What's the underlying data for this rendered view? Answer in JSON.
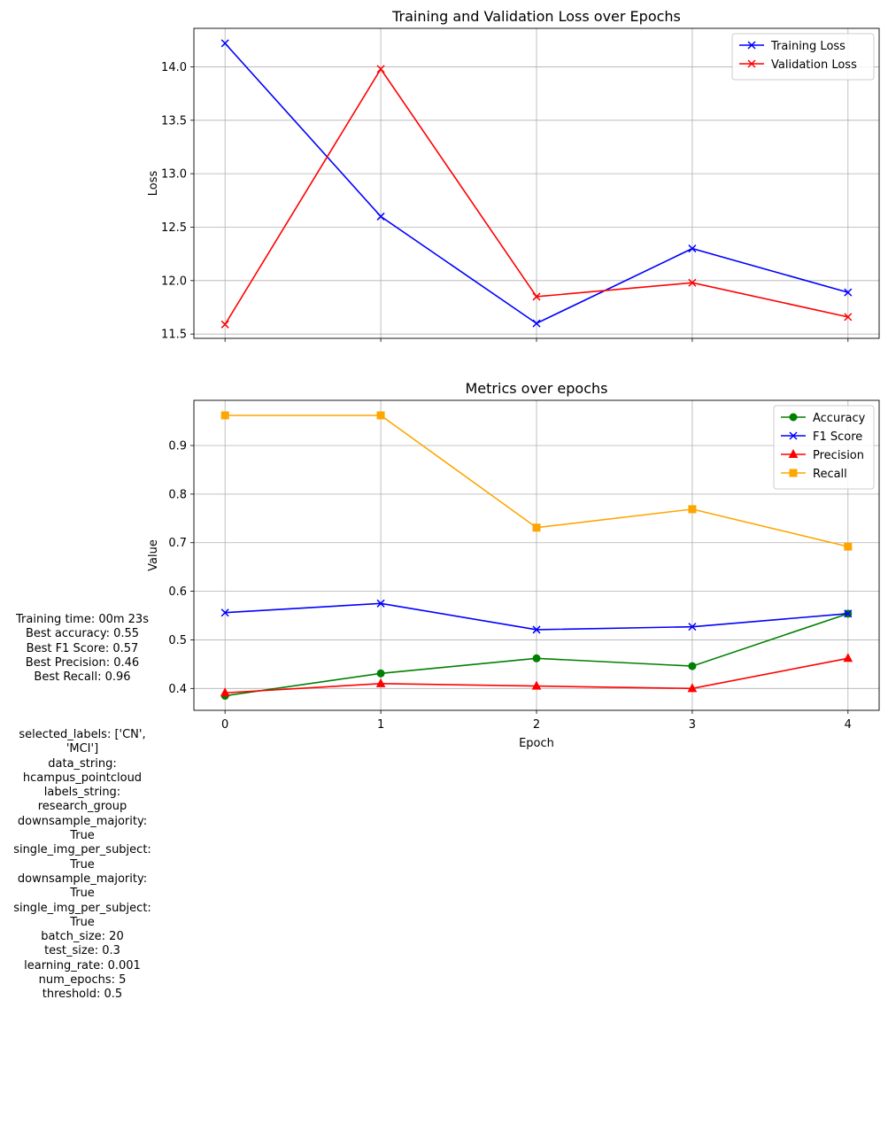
{
  "chart_data": [
    {
      "type": "line",
      "title": "Training and Validation Loss over Epochs",
      "xlabel": "",
      "ylabel": "Loss",
      "x": [
        0,
        1,
        2,
        3,
        4
      ],
      "xticks": [
        "0",
        "1",
        "2",
        "3",
        "4"
      ],
      "xlim": [
        -0.2,
        4.2
      ],
      "ylim": [
        11.46,
        14.36
      ],
      "yticks": [
        "11.5",
        "12.0",
        "12.5",
        "13.0",
        "13.5",
        "14.0"
      ],
      "grid": true,
      "legend": "top-right",
      "series": [
        {
          "name": "Training Loss",
          "color": "#0000ff",
          "marker": "x",
          "values": [
            14.22,
            12.6,
            11.6,
            12.3,
            11.89
          ]
        },
        {
          "name": "Validation Loss",
          "color": "#ff0000",
          "marker": "x",
          "values": [
            11.59,
            13.98,
            11.85,
            11.98,
            11.66
          ]
        }
      ]
    },
    {
      "type": "line",
      "title": "Metrics over epochs",
      "xlabel": "Epoch",
      "ylabel": "Value",
      "x": [
        0,
        1,
        2,
        3,
        4
      ],
      "xticks": [
        "0",
        "1",
        "2",
        "3",
        "4"
      ],
      "xlim": [
        -0.2,
        4.2
      ],
      "ylim": [
        0.355,
        0.993
      ],
      "yticks": [
        "0.4",
        "0.5",
        "0.6",
        "0.7",
        "0.8",
        "0.9"
      ],
      "grid": true,
      "legend": "top-right",
      "series": [
        {
          "name": "Accuracy",
          "color": "#008000",
          "marker": "o",
          "values": [
            0.385,
            0.431,
            0.462,
            0.446,
            0.554
          ]
        },
        {
          "name": "F1 Score",
          "color": "#0000ff",
          "marker": "x",
          "values": [
            0.556,
            0.575,
            0.521,
            0.527,
            0.554
          ]
        },
        {
          "name": "Precision",
          "color": "#ff0000",
          "marker": "^",
          "values": [
            0.391,
            0.41,
            0.405,
            0.4,
            0.462
          ]
        },
        {
          "name": "Recall",
          "color": "#ffa500",
          "marker": "s",
          "values": [
            0.962,
            0.962,
            0.731,
            0.769,
            0.692
          ]
        }
      ]
    }
  ],
  "summary": {
    "lines": [
      "Training time: 00m 23s",
      "Best accuracy: 0.55",
      "Best F1 Score: 0.57",
      "Best Precision: 0.46",
      "Best Recall: 0.96"
    ]
  },
  "params": {
    "lines": [
      "selected_labels: ['CN',",
      "'MCI']",
      "data_string:",
      "hcampus_pointcloud",
      "labels_string:",
      "research_group",
      "downsample_majority:",
      "True",
      "single_img_per_subject:",
      "True",
      "downsample_majority:",
      "True",
      "single_img_per_subject:",
      "True",
      "batch_size: 20",
      "test_size: 0.3",
      "learning_rate: 0.001",
      "num_epochs: 5",
      "threshold: 0.5"
    ]
  }
}
